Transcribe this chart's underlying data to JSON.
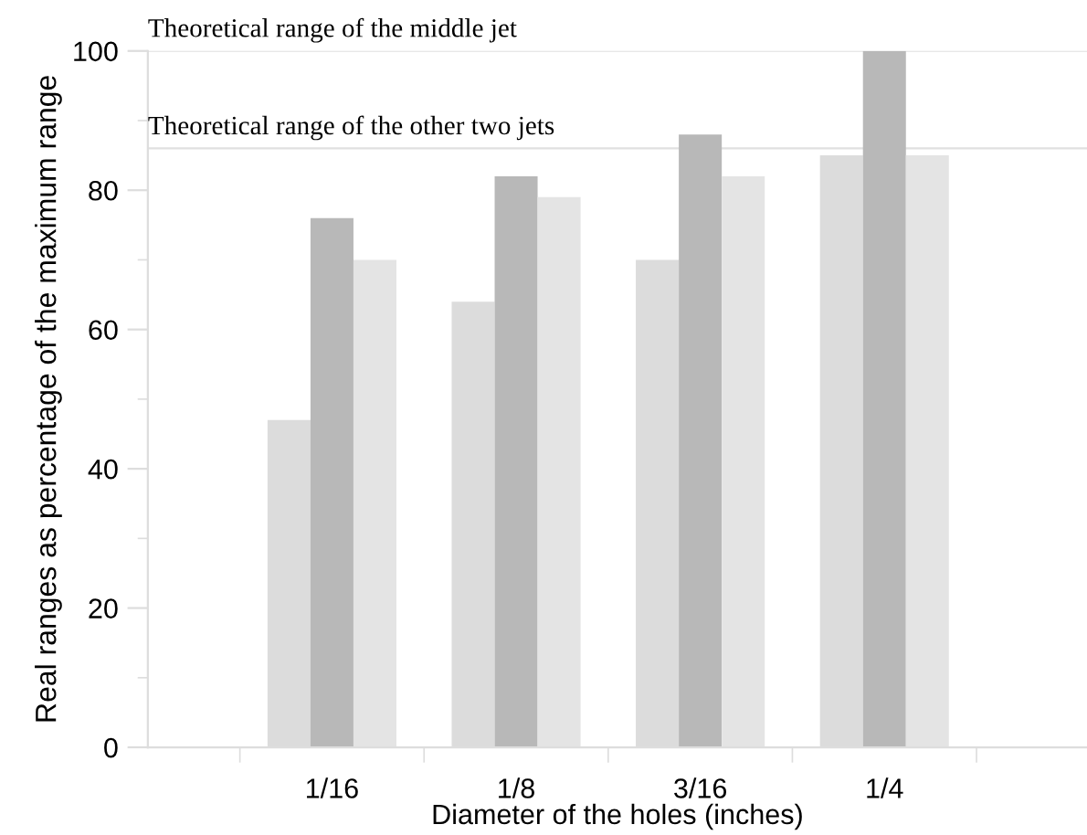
{
  "chart_data": {
    "type": "bar",
    "xlabel": "Diameter of the holes (inches)",
    "ylabel": "Real ranges as percentage of the maximum range",
    "categories": [
      "1/16",
      "1/8",
      "3/16",
      "1/4"
    ],
    "series": [
      {
        "color": "#dcdcdc",
        "values": [
          47,
          64,
          70,
          85
        ]
      },
      {
        "color": "#b8b8b8",
        "values": [
          76,
          82,
          88,
          100
        ]
      },
      {
        "color": "#e4e4e4",
        "values": [
          70,
          79,
          82,
          85
        ]
      }
    ],
    "ylim": [
      0,
      100
    ],
    "yticks": [
      0,
      20,
      40,
      60,
      80,
      100
    ],
    "ref_lines": [
      {
        "axis": "y",
        "value": 100,
        "label": "Theoretical range of the middle jet",
        "color": "#e0e0e0"
      },
      {
        "axis": "y",
        "value": 86,
        "label": "Theoretical range of the other two jets",
        "color": "#e0e0e0"
      }
    ],
    "grid": false,
    "legend": false
  }
}
